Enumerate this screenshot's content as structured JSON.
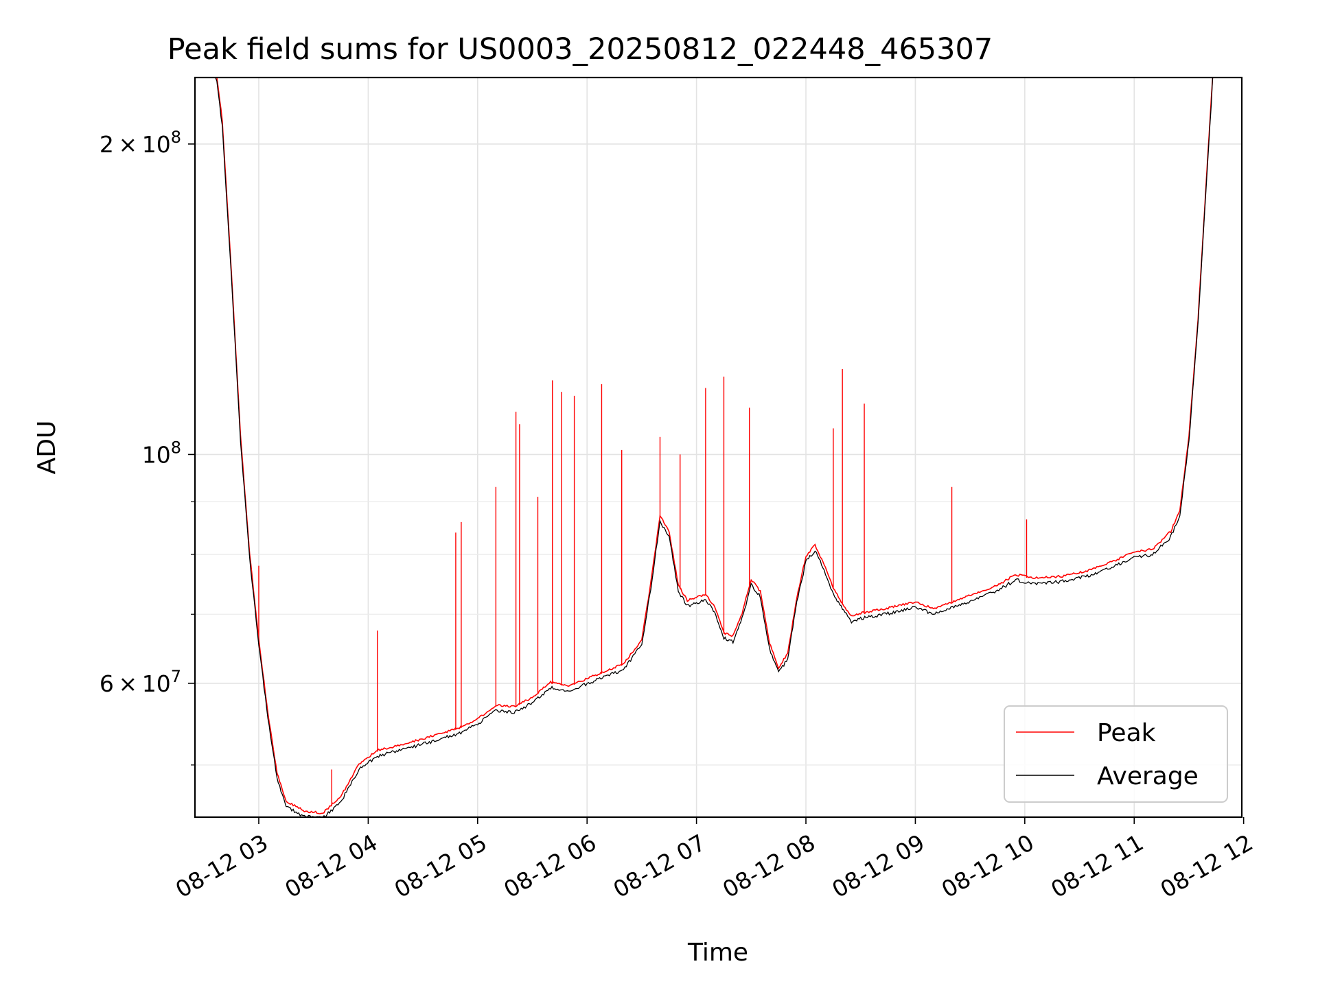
{
  "chart_data": {
    "type": "line",
    "title": "Peak field sums for US0003_20250812_022448_465307",
    "xlabel": "Time",
    "ylabel": "ADU",
    "yscale": "log",
    "ylim": [
      44500000,
      232000000
    ],
    "xlim": [
      "2025-08-12T02:25",
      "2025-08-12T11:59"
    ],
    "grid": true,
    "legend_position": "lower right",
    "x_ticks": [
      {
        "t": "2025-08-12T03:00",
        "label": "08-12 03"
      },
      {
        "t": "2025-08-12T04:00",
        "label": "08-12 04"
      },
      {
        "t": "2025-08-12T05:00",
        "label": "08-12 05"
      },
      {
        "t": "2025-08-12T06:00",
        "label": "08-12 06"
      },
      {
        "t": "2025-08-12T07:00",
        "label": "08-12 07"
      },
      {
        "t": "2025-08-12T08:00",
        "label": "08-12 08"
      },
      {
        "t": "2025-08-12T09:00",
        "label": "08-12 09"
      },
      {
        "t": "2025-08-12T10:00",
        "label": "08-12 10"
      },
      {
        "t": "2025-08-12T11:00",
        "label": "08-12 11"
      },
      {
        "t": "2025-08-12T12:00",
        "label": "08-12 12"
      }
    ],
    "y_ticks": [
      {
        "value": 200000000,
        "mantissa": "2",
        "exponent": "8"
      },
      {
        "value": 100000000,
        "mantissa": "",
        "exponent": "8"
      },
      {
        "value": 60000000,
        "mantissa": "6",
        "exponent": "7"
      }
    ],
    "y_minor_ticks": [
      50000000,
      70000000,
      80000000,
      90000000
    ],
    "series": [
      {
        "name": "Peak",
        "color": "#ff0000",
        "points": [
          [
            "2025-08-12T02:25",
            232000000
          ],
          [
            "2025-08-12T02:37",
            232000000
          ],
          [
            "2025-08-12T02:40",
            210000000
          ],
          [
            "2025-08-12T02:45",
            150000000
          ],
          [
            "2025-08-12T02:50",
            104000000
          ],
          [
            "2025-08-12T02:55",
            80000000
          ],
          [
            "2025-08-12T03:00",
            66000000
          ],
          [
            "2025-08-12T03:05",
            56000000
          ],
          [
            "2025-08-12T03:10",
            49000000
          ],
          [
            "2025-08-12T03:15",
            46000000
          ],
          [
            "2025-08-12T03:25",
            45000000
          ],
          [
            "2025-08-12T03:35",
            44800000
          ],
          [
            "2025-08-12T03:45",
            46500000
          ],
          [
            "2025-08-12T03:55",
            50000000
          ],
          [
            "2025-08-12T04:05",
            51500000
          ],
          [
            "2025-08-12T04:20",
            52300000
          ],
          [
            "2025-08-12T04:35",
            53200000
          ],
          [
            "2025-08-12T04:50",
            54200000
          ],
          [
            "2025-08-12T05:00",
            55300000
          ],
          [
            "2025-08-12T05:10",
            57000000
          ],
          [
            "2025-08-12T05:20",
            56800000
          ],
          [
            "2025-08-12T05:30",
            58000000
          ],
          [
            "2025-08-12T05:40",
            60000000
          ],
          [
            "2025-08-12T05:50",
            59500000
          ],
          [
            "2025-08-12T06:00",
            60500000
          ],
          [
            "2025-08-12T06:10",
            61500000
          ],
          [
            "2025-08-12T06:20",
            62500000
          ],
          [
            "2025-08-12T06:30",
            66000000
          ],
          [
            "2025-08-12T06:35",
            75000000
          ],
          [
            "2025-08-12T06:40",
            87000000
          ],
          [
            "2025-08-12T06:45",
            84000000
          ],
          [
            "2025-08-12T06:50",
            74500000
          ],
          [
            "2025-08-12T06:55",
            72000000
          ],
          [
            "2025-08-12T07:00",
            72500000
          ],
          [
            "2025-08-12T07:05",
            73000000
          ],
          [
            "2025-08-12T07:10",
            71000000
          ],
          [
            "2025-08-12T07:15",
            67000000
          ],
          [
            "2025-08-12T07:20",
            66500000
          ],
          [
            "2025-08-12T07:25",
            70000000
          ],
          [
            "2025-08-12T07:30",
            75500000
          ],
          [
            "2025-08-12T07:35",
            73500000
          ],
          [
            "2025-08-12T07:40",
            65500000
          ],
          [
            "2025-08-12T07:45",
            62000000
          ],
          [
            "2025-08-12T07:50",
            64000000
          ],
          [
            "2025-08-12T07:55",
            72500000
          ],
          [
            "2025-08-12T08:00",
            79500000
          ],
          [
            "2025-08-12T08:05",
            81500000
          ],
          [
            "2025-08-12T08:10",
            78000000
          ],
          [
            "2025-08-12T08:15",
            74000000
          ],
          [
            "2025-08-12T08:20",
            71500000
          ],
          [
            "2025-08-12T08:25",
            69500000
          ],
          [
            "2025-08-12T08:30",
            70000000
          ],
          [
            "2025-08-12T08:45",
            70800000
          ],
          [
            "2025-08-12T09:00",
            71800000
          ],
          [
            "2025-08-12T09:10",
            70700000
          ],
          [
            "2025-08-12T09:30",
            72800000
          ],
          [
            "2025-08-12T09:45",
            74500000
          ],
          [
            "2025-08-12T09:55",
            76300000
          ],
          [
            "2025-08-12T10:05",
            75700000
          ],
          [
            "2025-08-12T10:20",
            76000000
          ],
          [
            "2025-08-12T10:35",
            77000000
          ],
          [
            "2025-08-12T10:50",
            78800000
          ],
          [
            "2025-08-12T11:00",
            80300000
          ],
          [
            "2025-08-12T11:10",
            80700000
          ],
          [
            "2025-08-12T11:20",
            84000000
          ],
          [
            "2025-08-12T11:25",
            88000000
          ],
          [
            "2025-08-12T11:30",
            104000000
          ],
          [
            "2025-08-12T11:35",
            135000000
          ],
          [
            "2025-08-12T11:40",
            190000000
          ],
          [
            "2025-08-12T11:43",
            232000000
          ],
          [
            "2025-08-12T11:59",
            232000000
          ]
        ],
        "spikes": [
          [
            "2025-08-12T03:00",
            78000000
          ],
          [
            "2025-08-12T03:40",
            49500000
          ],
          [
            "2025-08-12T04:05",
            67500000
          ],
          [
            "2025-08-12T04:48",
            84000000
          ],
          [
            "2025-08-12T04:51",
            86000000
          ],
          [
            "2025-08-12T05:10",
            93000000
          ],
          [
            "2025-08-12T05:21",
            110000000
          ],
          [
            "2025-08-12T05:23",
            107000000
          ],
          [
            "2025-08-12T05:33",
            91000000
          ],
          [
            "2025-08-12T05:41",
            118000000
          ],
          [
            "2025-08-12T05:46",
            115000000
          ],
          [
            "2025-08-12T05:53",
            114000000
          ],
          [
            "2025-08-12T06:08",
            117000000
          ],
          [
            "2025-08-12T06:19",
            101000000
          ],
          [
            "2025-08-12T06:40",
            104000000
          ],
          [
            "2025-08-12T06:51",
            100000000
          ],
          [
            "2025-08-12T07:05",
            116000000
          ],
          [
            "2025-08-12T07:15",
            119000000
          ],
          [
            "2025-08-12T07:29",
            111000000
          ],
          [
            "2025-08-12T08:15",
            106000000
          ],
          [
            "2025-08-12T08:20",
            121000000
          ],
          [
            "2025-08-12T08:32",
            112000000
          ],
          [
            "2025-08-12T09:20",
            93000000
          ],
          [
            "2025-08-12T10:01",
            86500000
          ]
        ]
      },
      {
        "name": "Average",
        "color": "#000000"
      }
    ]
  }
}
